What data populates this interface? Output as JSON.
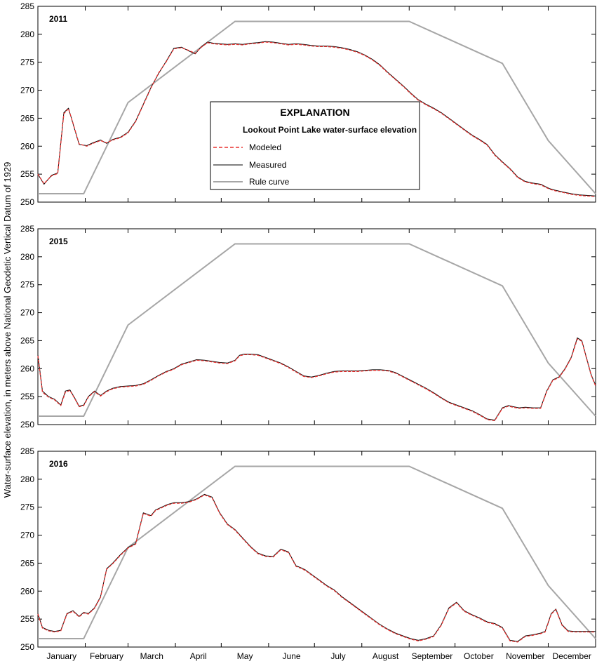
{
  "chart_data": {
    "type": "line",
    "ylabel": "Water-surface elevation, in meters above National Geodetic Vertical Datum of 1929",
    "xlabel": "",
    "months": [
      "January",
      "February",
      "March",
      "April",
      "May",
      "June",
      "July",
      "August",
      "September",
      "October",
      "November",
      "December"
    ],
    "ylim": [
      250,
      285
    ],
    "yticks": [
      250,
      255,
      260,
      265,
      270,
      275,
      280,
      285
    ],
    "xlim_day_of_year": [
      1,
      366
    ],
    "legend": {
      "title": "EXPLANATION",
      "subtitle": "Lookout Point Lake water-surface elevation",
      "entries": [
        {
          "name": "Modeled",
          "color": "#e8312f",
          "style": "dashed"
        },
        {
          "name": "Measured",
          "color": "#000000",
          "style": "solid"
        },
        {
          "name": "Rule curve",
          "color": "#a6a6a6",
          "style": "solid"
        }
      ]
    },
    "rule_curve": {
      "day_of_year": [
        1,
        31,
        60,
        130,
        244,
        305,
        335,
        366
      ],
      "elevation": [
        251.5,
        251.5,
        267.8,
        282.3,
        282.3,
        274.8,
        261.0,
        251.5
      ]
    },
    "panels": [
      {
        "year": "2011",
        "measured": {
          "day_of_year": [
            1,
            5,
            10,
            14,
            18,
            21,
            24,
            28,
            33,
            37,
            42,
            46,
            50,
            55,
            60,
            65,
            70,
            75,
            80,
            85,
            90,
            95,
            100,
            104,
            108,
            112,
            116,
            120,
            125,
            130,
            135,
            140,
            145,
            150,
            155,
            160,
            165,
            170,
            175,
            180,
            185,
            190,
            195,
            200,
            205,
            210,
            215,
            220,
            225,
            230,
            235,
            240,
            245,
            250,
            255,
            260,
            265,
            270,
            275,
            280,
            285,
            290,
            295,
            300,
            305,
            310,
            315,
            320,
            325,
            330,
            333,
            336,
            340,
            345,
            350,
            355,
            360,
            366
          ],
          "elevation": [
            255.0,
            253.2,
            254.8,
            255.2,
            266.0,
            266.8,
            264.0,
            260.3,
            260.1,
            260.6,
            261.1,
            260.5,
            261.2,
            261.6,
            262.5,
            264.5,
            267.5,
            270.5,
            273.0,
            275.2,
            277.5,
            277.7,
            277.0,
            276.5,
            277.8,
            278.6,
            278.4,
            278.3,
            278.2,
            278.3,
            278.2,
            278.4,
            278.5,
            278.7,
            278.6,
            278.4,
            278.2,
            278.3,
            278.2,
            278.0,
            277.9,
            277.9,
            277.8,
            277.6,
            277.3,
            276.9,
            276.3,
            275.5,
            274.5,
            273.2,
            272.0,
            270.8,
            269.5,
            268.3,
            267.5,
            266.8,
            266.0,
            265.0,
            264.0,
            263.0,
            262.0,
            261.2,
            260.3,
            258.5,
            257.2,
            256.0,
            254.5,
            253.7,
            253.4,
            253.2,
            252.8,
            252.4,
            252.1,
            251.8,
            251.5,
            251.3,
            251.2,
            251.1
          ]
        },
        "modeled": {
          "day_of_year": [
            1,
            5,
            10,
            14,
            18,
            21,
            24,
            28,
            33,
            37,
            42,
            46,
            50,
            55,
            60,
            65,
            70,
            75,
            80,
            85,
            90,
            95,
            100,
            104,
            108,
            112,
            116,
            120,
            125,
            130,
            135,
            140,
            145,
            150,
            155,
            160,
            165,
            170,
            175,
            180,
            185,
            190,
            195,
            200,
            205,
            210,
            215,
            220,
            225,
            230,
            235,
            240,
            245,
            250,
            255,
            260,
            265,
            270,
            275,
            280,
            285,
            290,
            295,
            300,
            305,
            310,
            315,
            320,
            325,
            330,
            333,
            336,
            340,
            345,
            350,
            355,
            360,
            366
          ],
          "elevation": [
            255.0,
            253.3,
            254.7,
            255.1,
            265.8,
            266.7,
            264.1,
            260.4,
            260.0,
            260.5,
            261.0,
            260.6,
            261.1,
            261.5,
            262.4,
            264.4,
            267.4,
            270.4,
            273.1,
            275.1,
            277.4,
            277.6,
            277.1,
            276.6,
            277.7,
            278.5,
            278.3,
            278.2,
            278.1,
            278.2,
            278.1,
            278.3,
            278.4,
            278.6,
            278.5,
            278.3,
            278.1,
            278.2,
            278.1,
            277.9,
            277.8,
            277.8,
            277.7,
            277.5,
            277.2,
            276.8,
            276.2,
            275.4,
            274.4,
            273.1,
            271.9,
            270.7,
            269.4,
            268.2,
            267.4,
            266.7,
            265.9,
            264.9,
            263.9,
            262.9,
            261.9,
            261.1,
            260.2,
            258.4,
            257.1,
            255.9,
            254.4,
            253.6,
            253.3,
            253.1,
            252.7,
            252.3,
            252.0,
            251.7,
            251.4,
            251.2,
            251.1,
            251.0
          ]
        }
      },
      {
        "year": "2015",
        "measured": {
          "day_of_year": [
            1,
            4,
            8,
            12,
            16,
            19,
            22,
            25,
            28,
            31,
            34,
            38,
            42,
            46,
            50,
            55,
            60,
            65,
            70,
            75,
            80,
            85,
            90,
            95,
            100,
            105,
            110,
            115,
            120,
            125,
            130,
            133,
            136,
            140,
            145,
            150,
            155,
            160,
            165,
            170,
            175,
            180,
            185,
            190,
            195,
            200,
            205,
            210,
            215,
            220,
            225,
            230,
            235,
            240,
            245,
            250,
            255,
            260,
            265,
            270,
            275,
            280,
            285,
            290,
            295,
            300,
            305,
            309,
            312,
            316,
            320,
            325,
            330,
            334,
            338,
            342,
            346,
            350,
            354,
            357,
            360,
            363,
            366
          ],
          "elevation": [
            262.5,
            256.0,
            255.0,
            254.5,
            253.5,
            256.0,
            256.2,
            254.8,
            253.3,
            253.5,
            255.0,
            256.0,
            255.2,
            256.0,
            256.5,
            256.8,
            256.9,
            257.0,
            257.3,
            258.0,
            258.8,
            259.5,
            260.0,
            260.8,
            261.2,
            261.6,
            261.5,
            261.3,
            261.1,
            261.0,
            261.5,
            262.4,
            262.6,
            262.6,
            262.5,
            262.0,
            261.5,
            261.0,
            260.3,
            259.5,
            258.7,
            258.5,
            258.8,
            259.2,
            259.5,
            259.6,
            259.6,
            259.6,
            259.7,
            259.8,
            259.8,
            259.7,
            259.3,
            258.6,
            257.9,
            257.2,
            256.5,
            255.7,
            254.8,
            254.0,
            253.5,
            253.0,
            252.5,
            251.8,
            251.0,
            250.8,
            253.0,
            253.4,
            253.2,
            253.0,
            253.1,
            253.0,
            253.0,
            256.0,
            258.0,
            258.5,
            260.0,
            262.0,
            265.5,
            265.0,
            262.0,
            259.0,
            257.0
          ]
        },
        "modeled": {
          "day_of_year": [
            1,
            4,
            8,
            12,
            16,
            19,
            22,
            25,
            28,
            31,
            34,
            38,
            42,
            46,
            50,
            55,
            60,
            65,
            70,
            75,
            80,
            85,
            90,
            95,
            100,
            105,
            110,
            115,
            120,
            125,
            130,
            133,
            136,
            140,
            145,
            150,
            155,
            160,
            165,
            170,
            175,
            180,
            185,
            190,
            195,
            200,
            205,
            210,
            215,
            220,
            225,
            230,
            235,
            240,
            245,
            250,
            255,
            260,
            265,
            270,
            275,
            280,
            285,
            290,
            295,
            300,
            305,
            309,
            312,
            316,
            320,
            325,
            330,
            334,
            338,
            342,
            346,
            350,
            354,
            357,
            360,
            363,
            366
          ],
          "elevation": [
            262.3,
            255.8,
            254.9,
            254.4,
            253.4,
            255.8,
            256.1,
            254.7,
            253.2,
            253.4,
            254.9,
            255.9,
            255.1,
            255.9,
            256.4,
            256.7,
            256.8,
            256.9,
            257.2,
            257.9,
            258.7,
            259.4,
            259.9,
            260.7,
            261.1,
            261.5,
            261.4,
            261.2,
            261.0,
            260.9,
            261.4,
            262.3,
            262.5,
            262.5,
            262.4,
            261.9,
            261.4,
            260.9,
            260.2,
            259.4,
            258.6,
            258.4,
            258.7,
            259.1,
            259.4,
            259.5,
            259.5,
            259.5,
            259.6,
            259.7,
            259.7,
            259.6,
            259.2,
            258.5,
            257.8,
            257.1,
            256.4,
            255.6,
            254.7,
            253.9,
            253.4,
            252.9,
            252.4,
            251.7,
            250.9,
            250.7,
            252.9,
            253.3,
            253.1,
            252.9,
            253.0,
            252.9,
            252.9,
            255.9,
            257.9,
            258.4,
            259.9,
            261.9,
            265.3,
            264.9,
            261.9,
            258.9,
            256.9
          ]
        }
      },
      {
        "year": "2016",
        "measured": {
          "day_of_year": [
            1,
            4,
            8,
            12,
            16,
            20,
            24,
            28,
            31,
            34,
            38,
            42,
            46,
            50,
            55,
            60,
            65,
            70,
            75,
            78,
            82,
            86,
            90,
            95,
            100,
            105,
            110,
            115,
            120,
            125,
            130,
            135,
            140,
            145,
            150,
            155,
            160,
            165,
            170,
            173,
            176,
            180,
            185,
            190,
            195,
            200,
            205,
            210,
            215,
            220,
            225,
            230,
            235,
            240,
            245,
            250,
            255,
            260,
            265,
            270,
            275,
            280,
            285,
            290,
            295,
            300,
            305,
            310,
            315,
            320,
            325,
            330,
            333,
            337,
            340,
            344,
            348,
            352,
            356,
            360,
            363,
            366
          ],
          "elevation": [
            256.0,
            253.5,
            253.0,
            252.8,
            253.0,
            256.0,
            256.5,
            255.5,
            256.2,
            256.0,
            257.0,
            259.0,
            264.0,
            265.0,
            266.5,
            267.8,
            268.5,
            274.0,
            273.5,
            274.5,
            275.0,
            275.5,
            275.8,
            275.8,
            276.0,
            276.5,
            277.3,
            276.8,
            274.0,
            272.0,
            271.0,
            269.5,
            268.0,
            266.8,
            266.3,
            266.2,
            267.5,
            267.0,
            264.5,
            264.2,
            263.8,
            263.0,
            262.0,
            261.0,
            260.2,
            259.0,
            258.0,
            257.0,
            256.0,
            255.0,
            254.0,
            253.2,
            252.5,
            252.0,
            251.5,
            251.2,
            251.5,
            252.0,
            254.0,
            257.0,
            258.0,
            256.5,
            255.8,
            255.2,
            254.5,
            254.2,
            253.5,
            251.2,
            251.0,
            252.0,
            252.2,
            252.5,
            252.8,
            256.0,
            256.8,
            254.0,
            252.9,
            252.8,
            252.8,
            252.8,
            252.8,
            252.8
          ]
        },
        "modeled": {
          "day_of_year": [
            1,
            4,
            8,
            12,
            16,
            20,
            24,
            28,
            31,
            34,
            38,
            42,
            46,
            50,
            55,
            60,
            65,
            70,
            75,
            78,
            82,
            86,
            90,
            95,
            100,
            105,
            110,
            115,
            120,
            125,
            130,
            135,
            140,
            145,
            150,
            155,
            160,
            165,
            170,
            173,
            176,
            180,
            185,
            190,
            195,
            200,
            205,
            210,
            215,
            220,
            225,
            230,
            235,
            240,
            245,
            250,
            255,
            260,
            265,
            270,
            275,
            280,
            285,
            290,
            295,
            300,
            305,
            310,
            315,
            320,
            325,
            330,
            333,
            337,
            340,
            344,
            348,
            352,
            356,
            360,
            363,
            366
          ],
          "elevation": [
            255.9,
            253.4,
            252.9,
            252.7,
            252.9,
            255.9,
            256.4,
            255.4,
            256.1,
            255.9,
            256.9,
            258.9,
            263.9,
            264.9,
            266.4,
            267.7,
            268.4,
            273.9,
            273.4,
            274.4,
            274.9,
            275.4,
            275.7,
            275.7,
            275.9,
            276.4,
            277.2,
            276.7,
            273.9,
            271.9,
            270.9,
            269.4,
            267.9,
            266.7,
            266.2,
            266.1,
            267.4,
            266.9,
            264.4,
            264.1,
            263.7,
            262.9,
            261.9,
            260.9,
            260.1,
            258.9,
            257.9,
            256.9,
            255.9,
            254.9,
            253.9,
            253.1,
            252.4,
            251.9,
            251.4,
            251.1,
            251.4,
            251.9,
            253.9,
            256.9,
            257.9,
            256.4,
            255.7,
            255.1,
            254.4,
            254.1,
            253.4,
            251.1,
            250.9,
            251.9,
            252.1,
            252.4,
            252.7,
            255.9,
            256.7,
            253.9,
            252.8,
            252.7,
            252.7,
            252.7,
            252.7,
            252.7
          ]
        }
      }
    ]
  }
}
